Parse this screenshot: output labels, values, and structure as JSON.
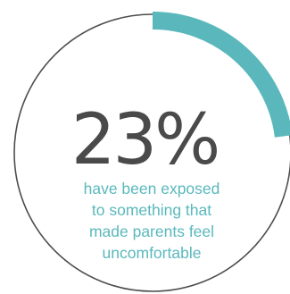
{
  "chart_data": {
    "type": "donut-progress",
    "value_percent": 23,
    "value_label": "23%",
    "caption_lines": [
      "have been exposed",
      "to something that",
      "made parents feel",
      "uncomfortable"
    ]
  },
  "colors": {
    "progress_arc": "#5ab8bc",
    "ring_outline": "#4d4d4d",
    "big_number": "#4a4a4a",
    "caption": "#5ab8bc"
  }
}
